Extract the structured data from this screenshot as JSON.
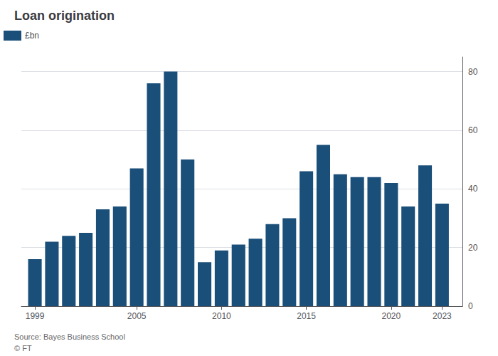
{
  "chart_data": {
    "type": "bar",
    "title": "Loan origination",
    "x": [
      1999,
      2000,
      2001,
      2002,
      2003,
      2004,
      2005,
      2006,
      2007,
      2008,
      2009,
      2010,
      2011,
      2012,
      2013,
      2014,
      2015,
      2016,
      2017,
      2018,
      2019,
      2020,
      2021,
      2022,
      2023
    ],
    "series": [
      {
        "name": "£bn",
        "color": "#1a4f7a",
        "values": [
          16,
          22,
          24,
          25,
          33,
          34,
          47,
          76,
          80,
          50,
          15,
          19,
          21,
          23,
          28,
          30,
          46,
          55,
          45,
          44,
          44,
          42,
          34,
          48,
          35
        ]
      }
    ],
    "xlim": [
      1998.2,
      2024.2
    ],
    "xticks": [
      1999,
      2005,
      2010,
      2015,
      2020,
      2023
    ],
    "ylim": [
      0,
      85
    ],
    "yticks": [
      0,
      20,
      40,
      60,
      80
    ],
    "grid": true,
    "legend": "upper left",
    "annotations": [
      "Source: Bayes Business School",
      "© FT"
    ]
  }
}
